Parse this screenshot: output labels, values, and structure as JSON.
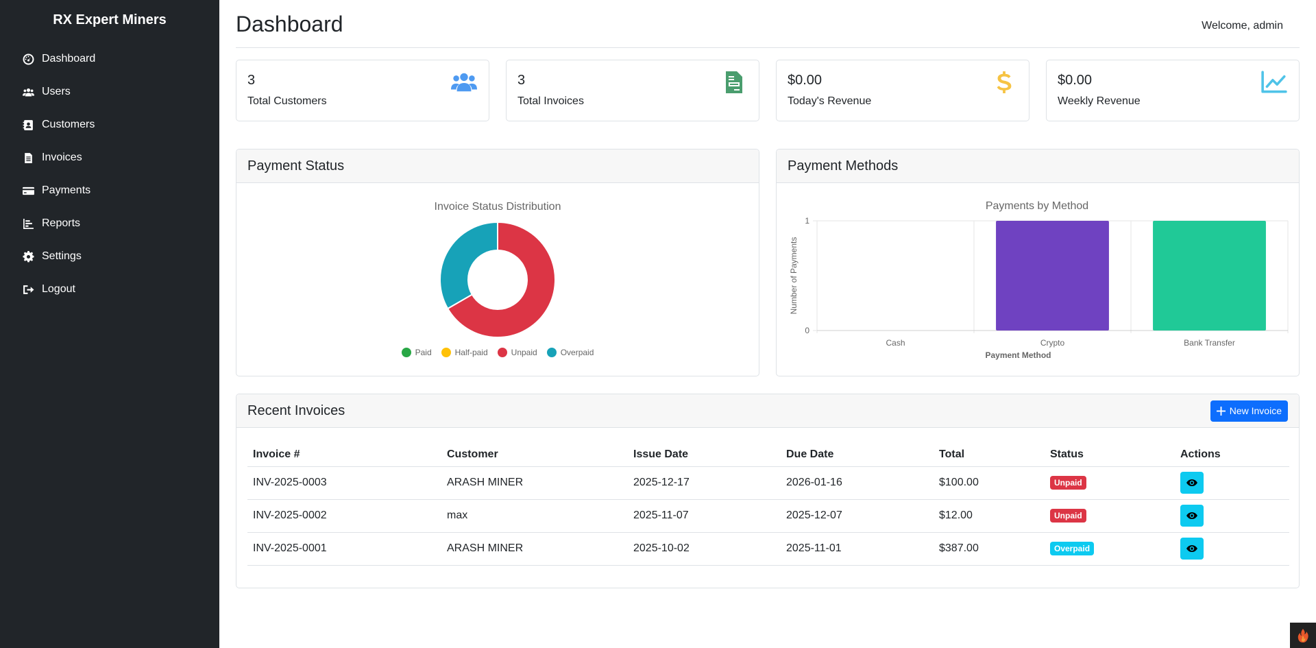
{
  "brand": "RX Expert Miners",
  "nav": [
    {
      "label": "Dashboard",
      "icon": "tachometer-icon"
    },
    {
      "label": "Users",
      "icon": "users-icon"
    },
    {
      "label": "Customers",
      "icon": "address-book-icon"
    },
    {
      "label": "Invoices",
      "icon": "file-invoice-icon"
    },
    {
      "label": "Payments",
      "icon": "credit-card-icon"
    },
    {
      "label": "Reports",
      "icon": "chart-bar-icon"
    },
    {
      "label": "Settings",
      "icon": "gear-icon"
    },
    {
      "label": "Logout",
      "icon": "sign-out-icon"
    }
  ],
  "header": {
    "title": "Dashboard",
    "welcome": "Welcome, admin"
  },
  "stats": [
    {
      "value": "3",
      "label": "Total Customers",
      "icon": "users-icon",
      "color": "#4e9af1"
    },
    {
      "value": "3",
      "label": "Total Invoices",
      "icon": "file-invoice-icon",
      "color": "#4a9d6e"
    },
    {
      "value": "$0.00",
      "label": "Today's Revenue",
      "icon": "dollar-icon",
      "color": "#f6c343"
    },
    {
      "value": "$0.00",
      "label": "Weekly Revenue",
      "icon": "chart-line-icon",
      "color": "#4fc3e8"
    }
  ],
  "payment_status": {
    "card_title": "Payment Status"
  },
  "payment_methods": {
    "card_title": "Payment Methods"
  },
  "chart_data": [
    {
      "type": "pie",
      "title": "Invoice Status Distribution",
      "categories": [
        "Paid",
        "Half-paid",
        "Unpaid",
        "Overpaid"
      ],
      "values": [
        0,
        0,
        2,
        1
      ],
      "colors": [
        "#28a745",
        "#ffc107",
        "#dc3545",
        "#17a2b8"
      ],
      "legend": "bottom"
    },
    {
      "type": "bar",
      "title": "Payments by Method",
      "categories": [
        "Cash",
        "Crypto",
        "Bank Transfer"
      ],
      "values": [
        0,
        1,
        1
      ],
      "colors": [
        "#cccccc",
        "#6f42c1",
        "#20c997"
      ],
      "xlabel": "Payment Method",
      "ylabel": "Number of Payments",
      "ylim": [
        0,
        1
      ],
      "yticks": [
        "0",
        "1"
      ],
      "grid": true
    }
  ],
  "recent": {
    "title": "Recent Invoices",
    "new_button": "New Invoice",
    "columns": [
      "Invoice #",
      "Customer",
      "Issue Date",
      "Due Date",
      "Total",
      "Status",
      "Actions"
    ],
    "rows": [
      {
        "invoice": "INV-2025-0003",
        "customer": "ARASH MINER",
        "issue": "2025-12-17",
        "due": "2026-01-16",
        "total": "$100.00",
        "status": "Unpaid",
        "status_color": "#dc3545"
      },
      {
        "invoice": "INV-2025-0002",
        "customer": "max",
        "issue": "2025-11-07",
        "due": "2025-12-07",
        "total": "$12.00",
        "status": "Unpaid",
        "status_color": "#dc3545"
      },
      {
        "invoice": "INV-2025-0001",
        "customer": "ARASH MINER",
        "issue": "2025-10-02",
        "due": "2025-11-01",
        "total": "$387.00",
        "status": "Overpaid",
        "status_color": "#0dcaf0"
      }
    ]
  }
}
